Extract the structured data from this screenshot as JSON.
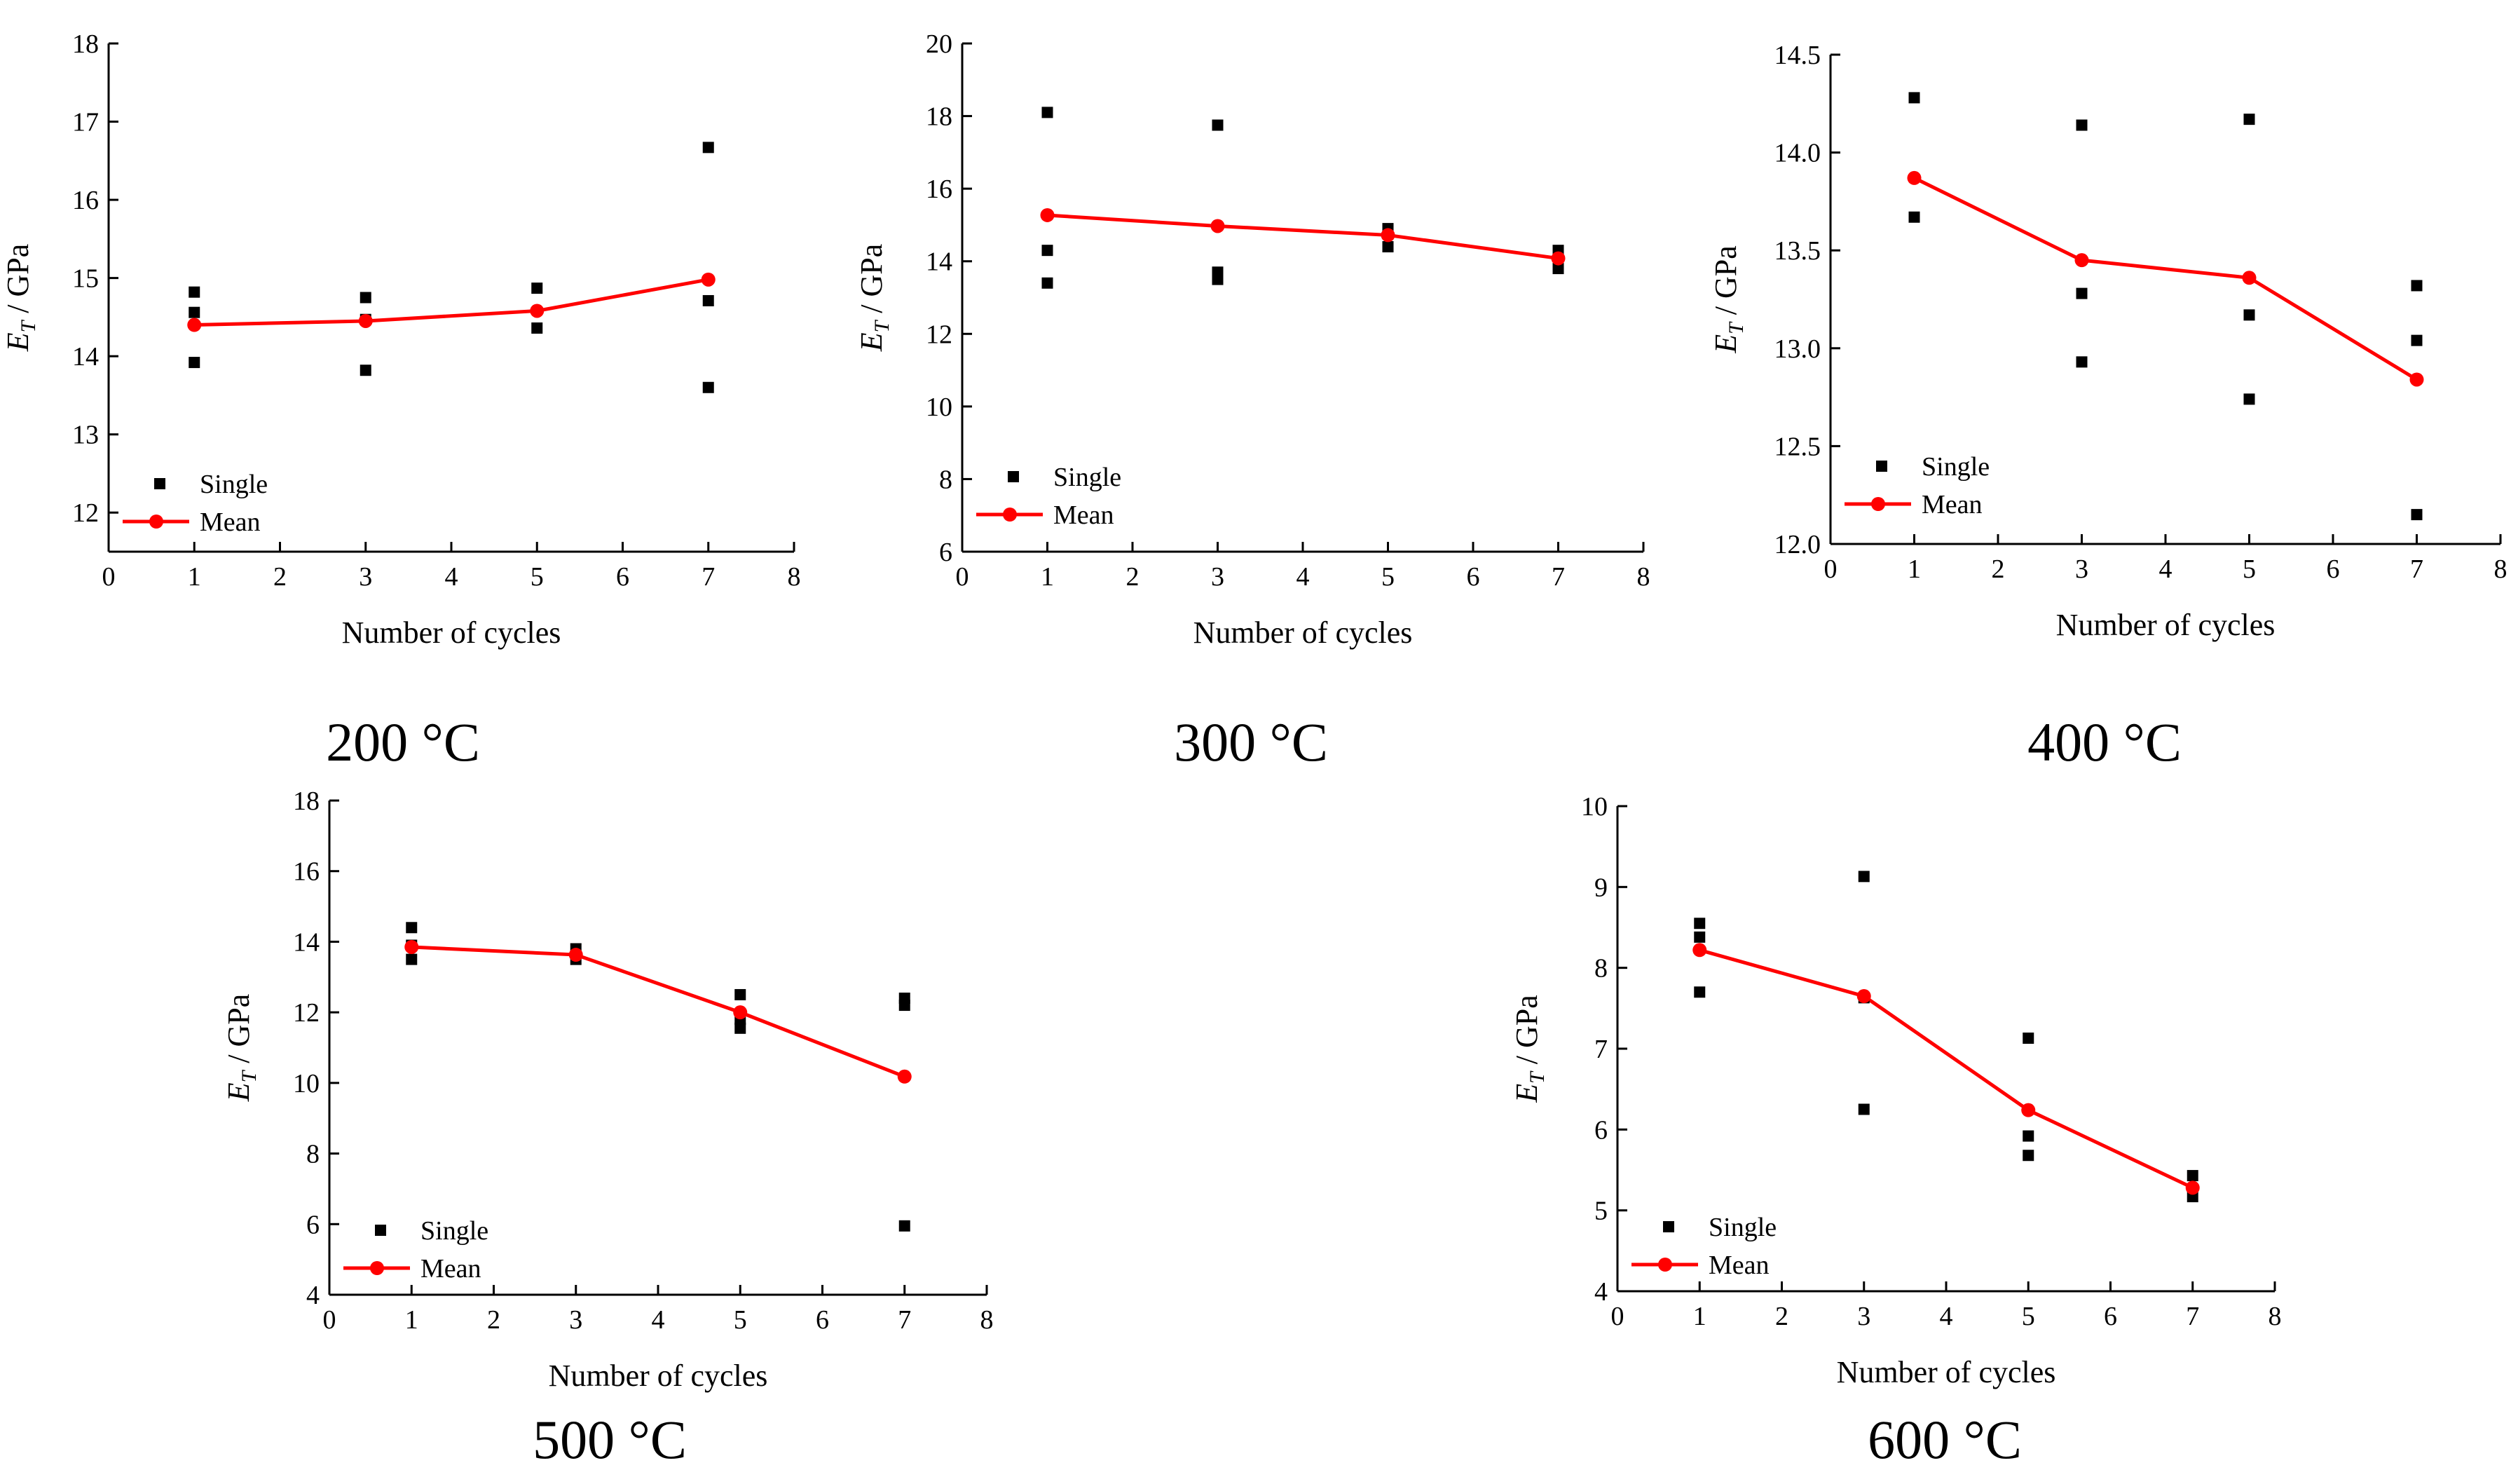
{
  "figure": {
    "legend_single": "Single",
    "legend_mean": "Mean",
    "ylabel_symbol": "E",
    "ylabel_subscript": "T",
    "ylabel_unit": " / GPa",
    "xlabel": "Number of cycles",
    "mean_color": "#ff0000",
    "single_color": "#000000"
  },
  "chart_data": [
    {
      "type": "scatter",
      "caption": "200 °C",
      "xlabel": "Number of cycles",
      "ylabel": "E_T / GPa",
      "xlim": [
        0,
        8
      ],
      "ylim": [
        11.5,
        18
      ],
      "xticks": [
        0,
        1,
        2,
        3,
        4,
        5,
        6,
        7,
        8
      ],
      "yticks": [
        12,
        13,
        14,
        15,
        16,
        17,
        18
      ],
      "ytick_labels": [
        "12",
        "13",
        "14",
        "15",
        "16",
        "17",
        "18"
      ],
      "series": [
        {
          "name": "Single",
          "type": "scatter",
          "points": [
            [
              1,
              14.82
            ],
            [
              1,
              14.56
            ],
            [
              1,
              13.92
            ],
            [
              3,
              14.75
            ],
            [
              3,
              14.47
            ],
            [
              3,
              13.82
            ],
            [
              5,
              14.87
            ],
            [
              5,
              14.36
            ],
            [
              7,
              16.67
            ],
            [
              7,
              14.71
            ],
            [
              7,
              13.6
            ]
          ]
        },
        {
          "name": "Mean",
          "type": "line",
          "points": [
            [
              1,
              14.4
            ],
            [
              3,
              14.45
            ],
            [
              5,
              14.58
            ],
            [
              7,
              14.98
            ]
          ]
        }
      ]
    },
    {
      "type": "scatter",
      "caption": "300 °C",
      "xlabel": "Number of cycles",
      "ylabel": "E_T / GPa",
      "xlim": [
        0,
        8
      ],
      "ylim": [
        6,
        20
      ],
      "xticks": [
        0,
        1,
        2,
        3,
        4,
        5,
        6,
        7,
        8
      ],
      "yticks": [
        6,
        8,
        10,
        12,
        14,
        16,
        18,
        20
      ],
      "ytick_labels": [
        "6",
        "8",
        "10",
        "12",
        "14",
        "16",
        "18",
        "20"
      ],
      "series": [
        {
          "name": "Single",
          "type": "scatter",
          "points": [
            [
              1,
              18.1
            ],
            [
              1,
              14.3
            ],
            [
              1,
              13.4
            ],
            [
              3,
              17.75
            ],
            [
              3,
              13.7
            ],
            [
              3,
              13.5
            ],
            [
              5,
              14.9
            ],
            [
              5,
              14.4
            ],
            [
              7,
              14.3
            ],
            [
              7,
              13.8
            ]
          ]
        },
        {
          "name": "Mean",
          "type": "line",
          "points": [
            [
              1,
              15.27
            ],
            [
              3,
              14.97
            ],
            [
              5,
              14.72
            ],
            [
              7,
              14.08
            ]
          ]
        }
      ]
    },
    {
      "type": "scatter",
      "caption": "400 °C",
      "xlabel": "Number of cycles",
      "ylabel": "E_T / GPa",
      "xlim": [
        0,
        8
      ],
      "ylim": [
        12.0,
        14.5
      ],
      "xticks": [
        0,
        1,
        2,
        3,
        4,
        5,
        6,
        7,
        8
      ],
      "yticks": [
        12.0,
        12.5,
        13.0,
        13.5,
        14.0,
        14.5
      ],
      "ytick_labels": [
        "12.0",
        "12.5",
        "13.0",
        "13.5",
        "14.0",
        "14.5"
      ],
      "series": [
        {
          "name": "Single",
          "type": "scatter",
          "points": [
            [
              1,
              14.28
            ],
            [
              1,
              13.67
            ],
            [
              3,
              14.14
            ],
            [
              3,
              13.28
            ],
            [
              3,
              12.93
            ],
            [
              5,
              14.17
            ],
            [
              5,
              13.17
            ],
            [
              5,
              12.74
            ],
            [
              7,
              13.32
            ],
            [
              7,
              13.04
            ],
            [
              7,
              12.15
            ]
          ]
        },
        {
          "name": "Mean",
          "type": "line",
          "points": [
            [
              1,
              13.87
            ],
            [
              3,
              13.45
            ],
            [
              5,
              13.36
            ],
            [
              7,
              12.84
            ]
          ]
        }
      ]
    },
    {
      "type": "scatter",
      "caption": "500 °C",
      "xlabel": "Number of cycles",
      "ylabel": "E_T / GPa",
      "xlim": [
        0,
        8
      ],
      "ylim": [
        4,
        18
      ],
      "xticks": [
        0,
        1,
        2,
        3,
        4,
        5,
        6,
        7,
        8
      ],
      "yticks": [
        4,
        6,
        8,
        10,
        12,
        14,
        16,
        18
      ],
      "ytick_labels": [
        "4",
        "6",
        "8",
        "10",
        "12",
        "14",
        "16",
        "18"
      ],
      "series": [
        {
          "name": "Single",
          "type": "scatter",
          "points": [
            [
              1,
              14.4
            ],
            [
              1,
              13.9
            ],
            [
              1,
              13.5
            ],
            [
              3,
              13.8
            ],
            [
              3,
              13.5
            ],
            [
              5,
              12.5
            ],
            [
              5,
              11.8
            ],
            [
              5,
              11.55
            ],
            [
              7,
              12.4
            ],
            [
              7,
              12.2
            ],
            [
              7,
              5.95
            ]
          ]
        },
        {
          "name": "Mean",
          "type": "line",
          "points": [
            [
              1,
              13.85
            ],
            [
              3,
              13.63
            ],
            [
              5,
              12.0
            ],
            [
              7,
              10.18
            ]
          ]
        }
      ]
    },
    {
      "type": "scatter",
      "caption": "600 °C",
      "xlabel": "Number of cycles",
      "ylabel": "E_T / GPa",
      "xlim": [
        0,
        8
      ],
      "ylim": [
        4,
        10
      ],
      "xticks": [
        0,
        1,
        2,
        3,
        4,
        5,
        6,
        7,
        8
      ],
      "yticks": [
        4,
        5,
        6,
        7,
        8,
        9,
        10
      ],
      "ytick_labels": [
        "4",
        "5",
        "6",
        "7",
        "8",
        "9",
        "10"
      ],
      "series": [
        {
          "name": "Single",
          "type": "scatter",
          "points": [
            [
              1,
              8.55
            ],
            [
              1,
              8.38
            ],
            [
              1,
              7.7
            ],
            [
              3,
              9.13
            ],
            [
              3,
              7.63
            ],
            [
              3,
              6.25
            ],
            [
              5,
              7.13
            ],
            [
              5,
              5.92
            ],
            [
              5,
              5.68
            ],
            [
              7,
              5.43
            ],
            [
              7,
              5.17
            ]
          ]
        },
        {
          "name": "Mean",
          "type": "line",
          "points": [
            [
              1,
              8.22
            ],
            [
              3,
              7.65
            ],
            [
              5,
              6.24
            ],
            [
              7,
              5.28
            ]
          ]
        }
      ]
    }
  ]
}
